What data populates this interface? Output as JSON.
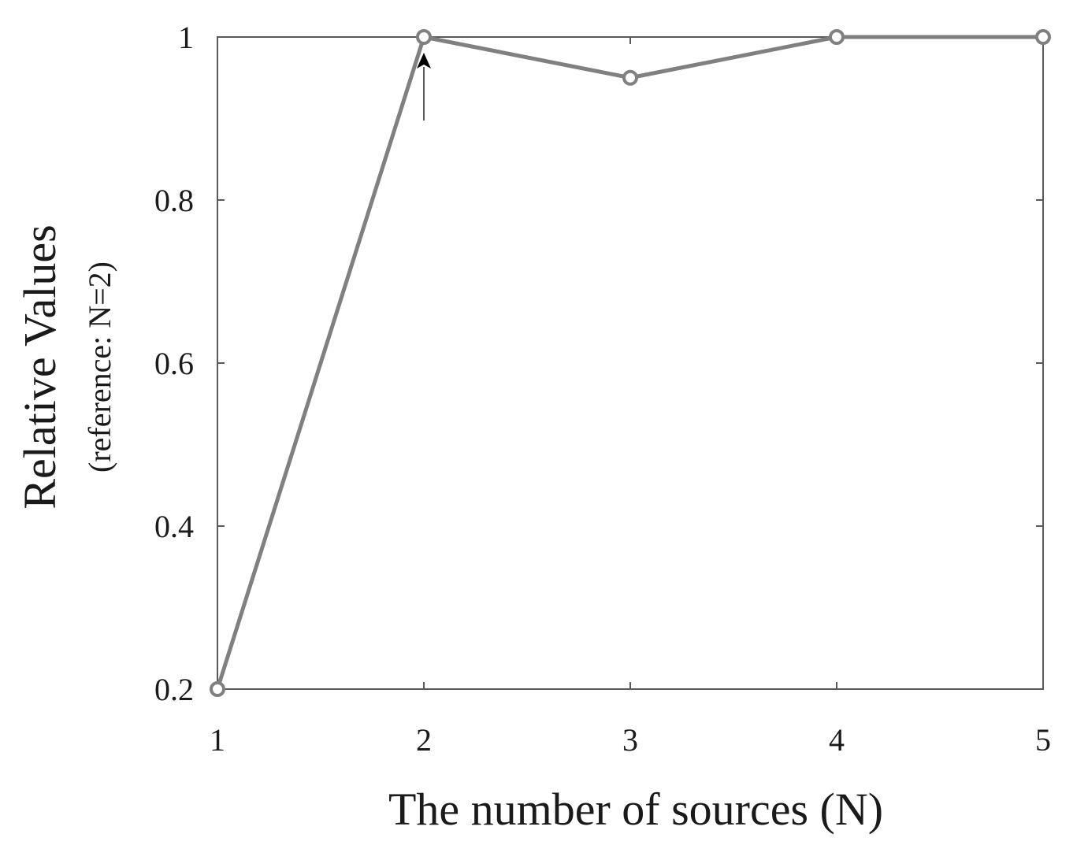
{
  "chart_data": {
    "type": "line",
    "xlabel": "The number of sources (N)",
    "ylabel": "Relative Values",
    "ylabel_sub": "(reference: N=2)",
    "x": [
      1,
      2,
      3,
      4,
      5
    ],
    "series": [
      {
        "values": [
          0.2,
          1.0,
          0.95,
          1.0,
          1.0
        ],
        "color": "#808080",
        "marker": "circle"
      }
    ],
    "xlim": [
      1,
      5
    ],
    "ylim": [
      0.2,
      1.0
    ],
    "xticks": [
      1,
      2,
      3,
      4,
      5
    ],
    "xtick_labels": [
      "1",
      "2",
      "3",
      "4",
      "5"
    ],
    "yticks": [
      0.2,
      0.4,
      0.6,
      0.8,
      1.0
    ],
    "ytick_labels": [
      "0.2",
      "0.4",
      "0.6",
      "0.8",
      "1"
    ],
    "grid": false,
    "annotations": [
      {
        "type": "arrow",
        "target_x": 2,
        "target_y": 1.0,
        "color": "#000000"
      }
    ]
  }
}
